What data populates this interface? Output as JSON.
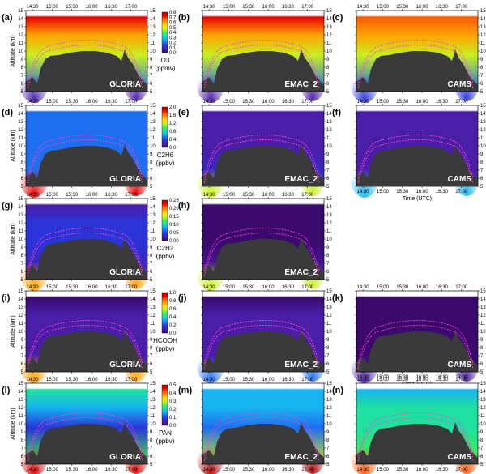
{
  "time_ticks": [
    "14:30",
    "15:00",
    "15:30",
    "16:00",
    "16:30",
    "17:00"
  ],
  "altitude_ticks": [
    "5",
    "6",
    "7",
    "8",
    "9",
    "10",
    "11",
    "12",
    "13",
    "14",
    "15"
  ],
  "y_axis_label": "Altitude (km)",
  "x_axis_label": "Time (UTC)",
  "colormap": [
    "#3a0a6e",
    "#4b1ea8",
    "#2a34d8",
    "#1e6ef0",
    "#16b4f0",
    "#1ee0a0",
    "#46f046",
    "#c8f01e",
    "#ffe000",
    "#ffa000",
    "#ff5a00",
    "#e60000",
    "#b40000"
  ],
  "chart_data": [
    {
      "type": "heatmap",
      "panel": "(a)",
      "model": "GLORIA",
      "species": "O3",
      "unit": "(ppmv)",
      "xlim": [
        "14:20",
        "17:25"
      ],
      "ylim": [
        5,
        15
      ],
      "colorbar_ticks": [
        "0.0",
        "0.1",
        "0.2",
        "0.3",
        "0.4",
        "0.5",
        "0.6",
        "0.7",
        "0.8"
      ]
    },
    {
      "type": "heatmap",
      "panel": "(b)",
      "model": "EMAC_2",
      "species": "O3",
      "xlim": [
        "14:20",
        "17:25"
      ],
      "ylim": [
        5,
        15
      ]
    },
    {
      "type": "heatmap",
      "panel": "(c)",
      "model": "CAMS",
      "species": "O3",
      "xlim": [
        "14:20",
        "17:25"
      ],
      "ylim": [
        5,
        15
      ]
    },
    {
      "type": "heatmap",
      "panel": "(d)",
      "model": "GLORIA",
      "species": "C2H6",
      "unit": "(ppbv)",
      "xlim": [
        "14:20",
        "17:25"
      ],
      "ylim": [
        5,
        15
      ],
      "colorbar_ticks": [
        "0.0",
        "0.4",
        "0.8",
        "1.2",
        "1.6",
        "2.0"
      ]
    },
    {
      "type": "heatmap",
      "panel": "(e)",
      "model": "EMAC_2",
      "species": "C2H6",
      "xlim": [
        "14:20",
        "17:25"
      ],
      "ylim": [
        5,
        15
      ]
    },
    {
      "type": "heatmap",
      "panel": "(f)",
      "model": "CAMS",
      "species": "C2H6",
      "xlim": [
        "14:20",
        "17:25"
      ],
      "ylim": [
        5,
        15
      ]
    },
    {
      "type": "heatmap",
      "panel": "(g)",
      "model": "GLORIA",
      "species": "C2H2",
      "unit": "(ppbv)",
      "xlim": [
        "14:20",
        "17:25"
      ],
      "ylim": [
        5,
        15
      ],
      "colorbar_ticks": [
        "0.00",
        "0.05",
        "0.10",
        "0.15",
        "0.20",
        "0.25"
      ]
    },
    {
      "type": "heatmap",
      "panel": "(h)",
      "model": "EMAC_2",
      "species": "C2H2",
      "xlim": [
        "14:20",
        "17:25"
      ],
      "ylim": [
        5,
        15
      ]
    },
    {
      "type": "heatmap",
      "panel": "(i)",
      "model": "GLORIA",
      "species": "HCOOH",
      "unit": "(ppbv)",
      "xlim": [
        "14:20",
        "17:25"
      ],
      "ylim": [
        5,
        15
      ],
      "colorbar_ticks": [
        "0.0",
        "0.2",
        "0.4",
        "0.6",
        "0.8",
        "1.0"
      ]
    },
    {
      "type": "heatmap",
      "panel": "(j)",
      "model": "EMAC_2",
      "species": "HCOOH",
      "xlim": [
        "14:20",
        "17:25"
      ],
      "ylim": [
        5,
        15
      ]
    },
    {
      "type": "heatmap",
      "panel": "(k)",
      "model": "CAMS",
      "species": "HCOOH",
      "xlim": [
        "14:20",
        "17:25"
      ],
      "ylim": [
        5,
        15
      ]
    },
    {
      "type": "heatmap",
      "panel": "(l)",
      "model": "GLORIA",
      "species": "PAN",
      "unit": "(ppbv)",
      "xlim": [
        "14:20",
        "17:25"
      ],
      "ylim": [
        5,
        15
      ],
      "colorbar_ticks": [
        "0.0",
        "0.1",
        "0.2",
        "0.3",
        "0.4",
        "0.5"
      ]
    },
    {
      "type": "heatmap",
      "panel": "(m)",
      "model": "EMAC_2",
      "species": "PAN",
      "xlim": [
        "14:20",
        "17:25"
      ],
      "ylim": [
        5,
        15
      ]
    },
    {
      "type": "heatmap",
      "panel": "(n)",
      "model": "CAMS",
      "species": "PAN",
      "xlim": [
        "14:20",
        "17:25"
      ],
      "ylim": [
        5,
        15
      ]
    }
  ]
}
